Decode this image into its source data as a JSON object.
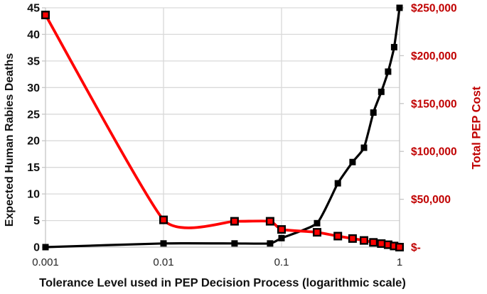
{
  "chart_data": {
    "type": "line",
    "title": "",
    "x_axis": {
      "label": "Tolerance Level used in PEP Decision Process (logarithmic scale)",
      "scale": "log",
      "range": [
        0.001,
        1
      ],
      "ticks": [
        "0.001",
        "0.01",
        "0.1",
        "1"
      ],
      "tick_values": [
        0.001,
        0.01,
        0.1,
        1
      ],
      "tick_color": "#262626"
    },
    "y_axis_left": {
      "label": "Expected Human Rabies Deaths",
      "range": [
        0,
        45
      ],
      "ticks": [
        "0",
        "5",
        "10",
        "15",
        "20",
        "25",
        "30",
        "35",
        "40",
        "45"
      ],
      "tick_color": "#111111"
    },
    "y_axis_right": {
      "label": "Total PEP Cost",
      "range": [
        0,
        250000
      ],
      "ticks": [
        "$-",
        "$50,000",
        "$100,000",
        "$150,000",
        "$200,000",
        "$250,000"
      ],
      "tick_color": "#C00000"
    },
    "x": [
      0.001,
      0.01,
      0.04,
      0.08,
      0.1,
      0.2,
      0.3,
      0.4,
      0.5,
      0.6,
      0.7,
      0.8,
      0.9,
      1
    ],
    "series": [
      {
        "name": "Expected Human Rabies Deaths",
        "axis": "left",
        "color": "#000000",
        "marker": "solid-black-square",
        "line_style": "smooth",
        "values": [
          0,
          0.7,
          0.7,
          0.7,
          1.7,
          4.5,
          12,
          16,
          18.7,
          25.3,
          29.2,
          33,
          37.6,
          45
        ]
      },
      {
        "name": "Total PEP Cost",
        "axis": "right",
        "color": "#FF0000",
        "marker": "red-square-black-outline",
        "line_style": "smooth",
        "values": [
          242500,
          28500,
          27000,
          27000,
          18500,
          15500,
          11500,
          9000,
          7000,
          5000,
          3700,
          2500,
          1200,
          0
        ]
      }
    ],
    "grid": {
      "show": true,
      "color": "#D9D9D9",
      "axis_line_color": "#C6C6C6",
      "horizontal_lines_left_values": [
        0,
        5,
        10,
        15,
        20,
        25,
        30,
        35,
        40,
        45
      ],
      "vertical_lines_x_values": [
        0.001,
        0.01,
        0.1,
        1
      ]
    },
    "legend": {
      "show": false
    },
    "background": "#FFFFFF"
  }
}
